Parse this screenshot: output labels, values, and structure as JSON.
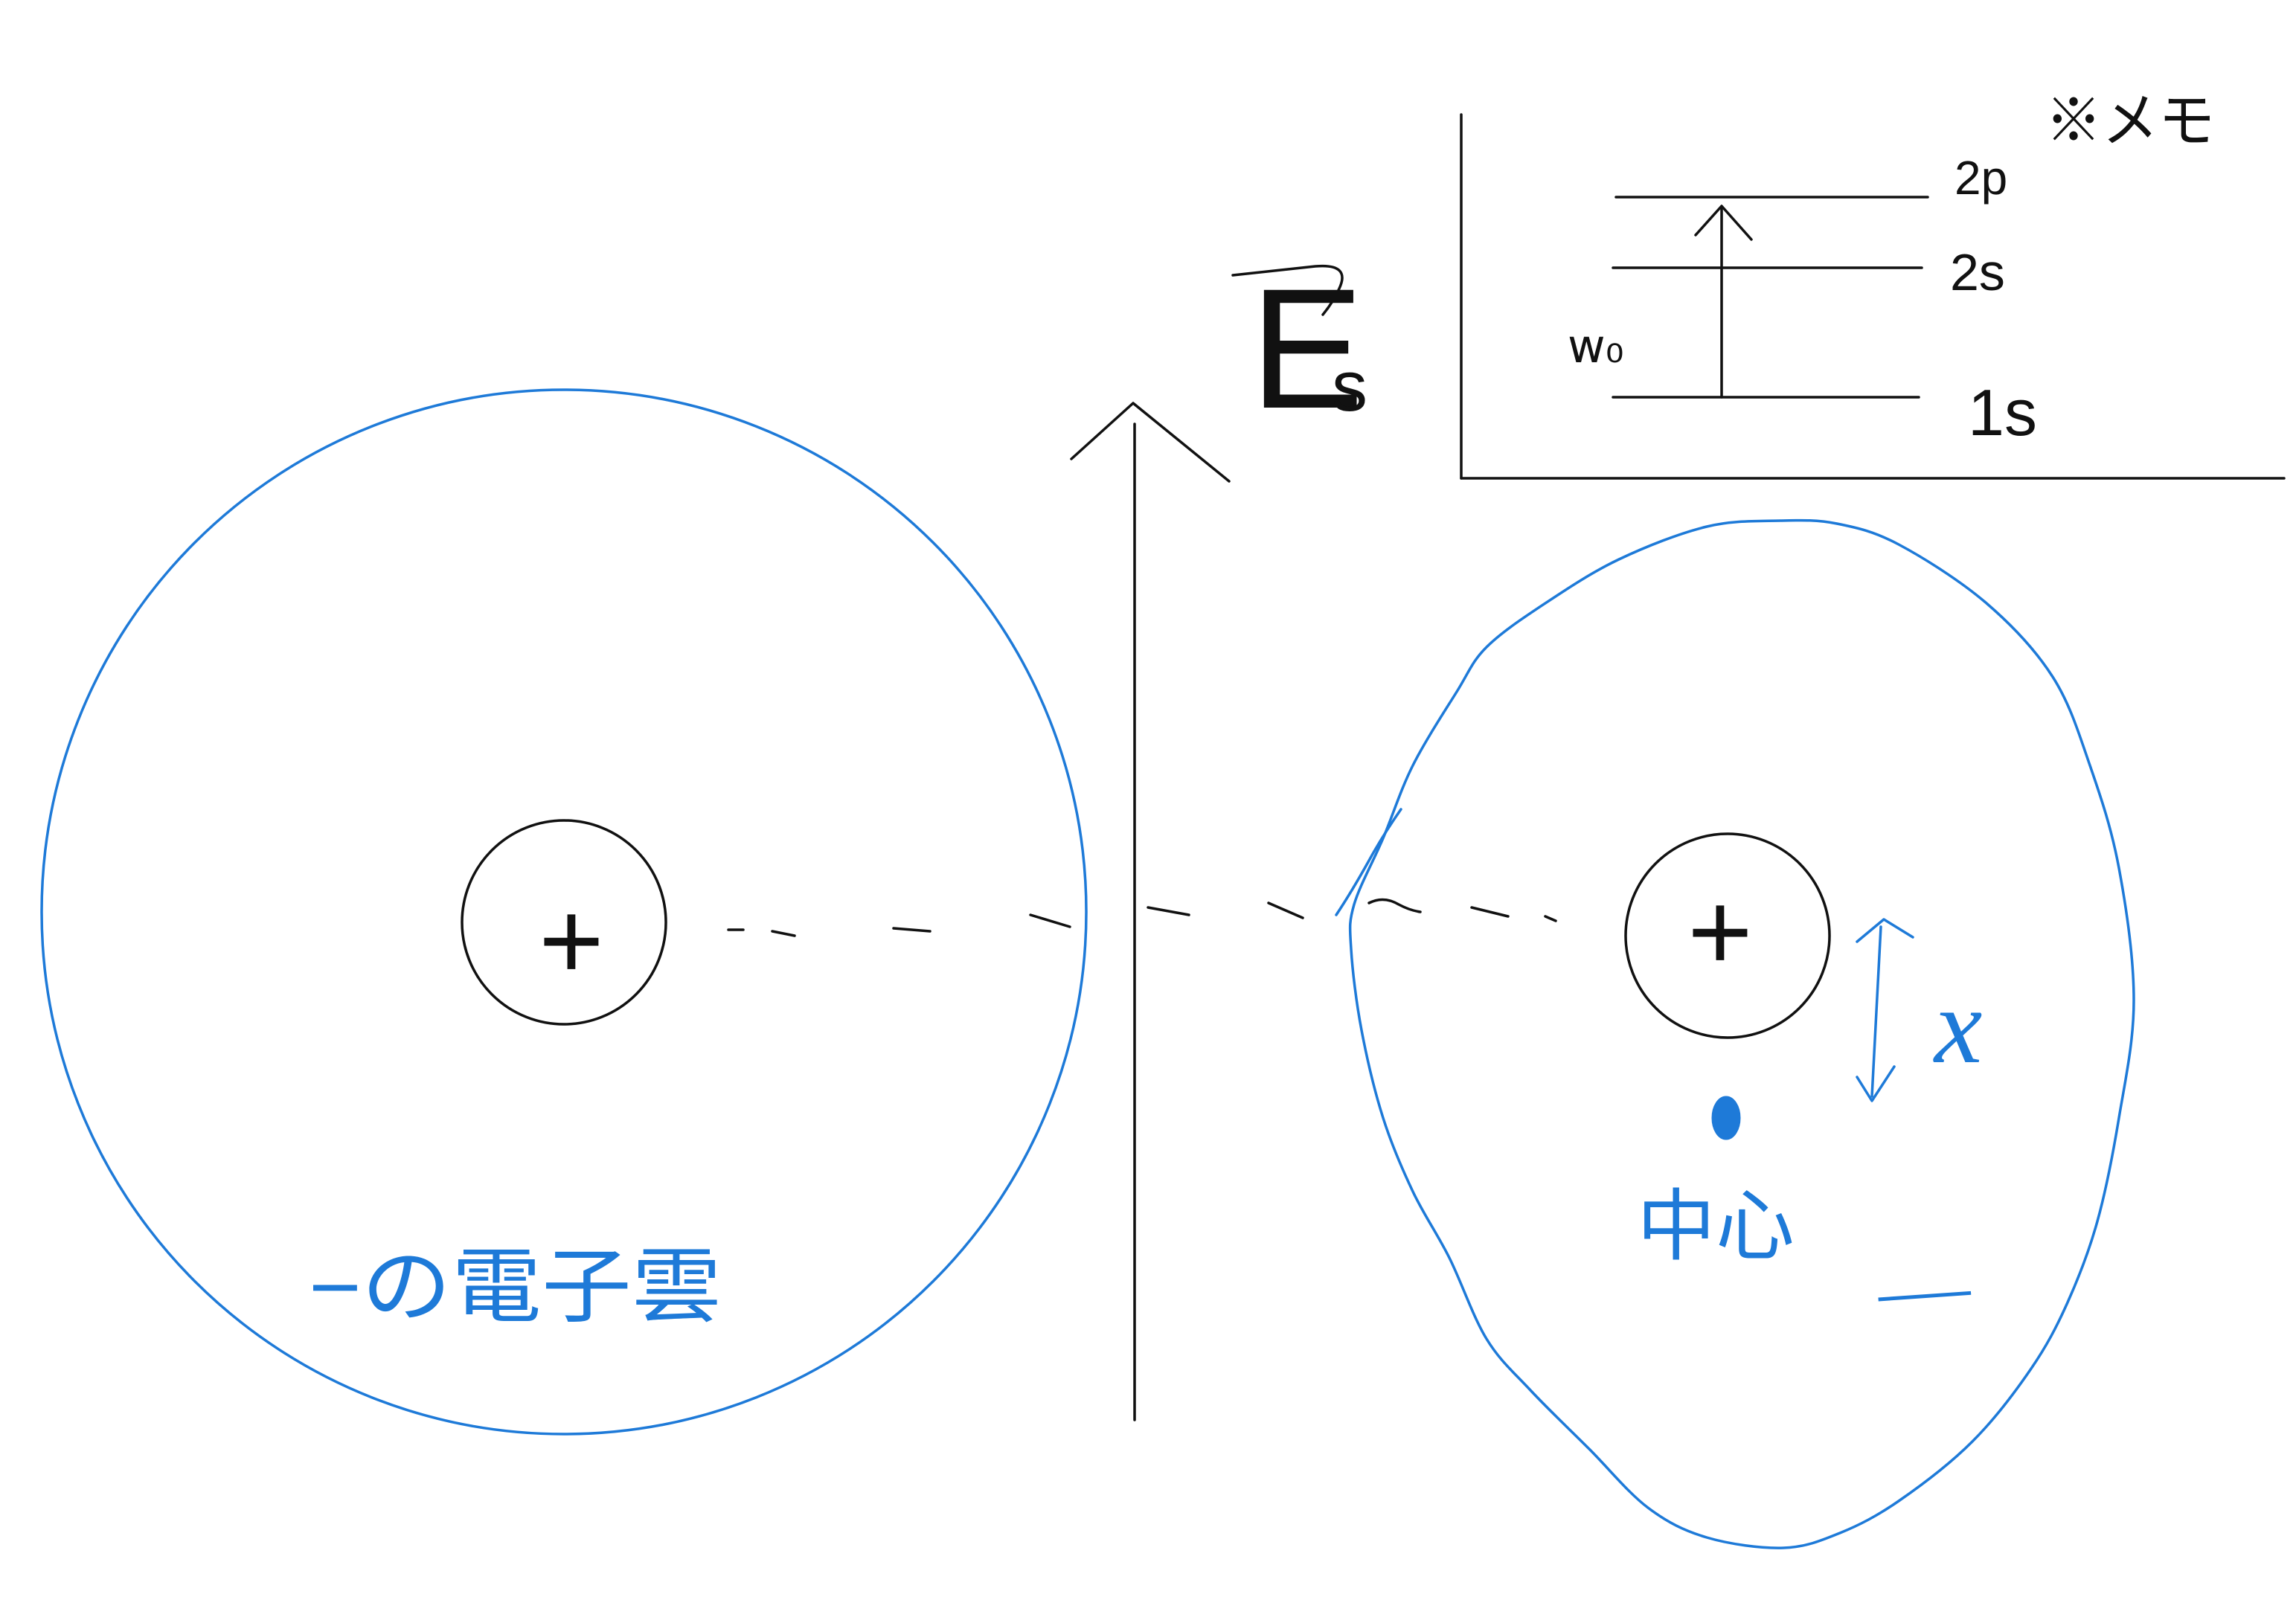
{
  "colors": {
    "ink": "#111111",
    "blue": "#1e7ad8",
    "background": "#ffffff"
  },
  "left_atom": {
    "nucleus_sign": "+",
    "cloud_label": "−の電子雲"
  },
  "field": {
    "label_main": "E",
    "label_sub": "s"
  },
  "right_atom": {
    "nucleus_sign": "+",
    "displacement_label": "x",
    "center_label": "中心",
    "cloud_sign": "−"
  },
  "energy_diagram": {
    "note": "※メモ",
    "levels": [
      {
        "label": "2p"
      },
      {
        "label": "2s"
      },
      {
        "label": "1s"
      }
    ],
    "transition_label": "w₀"
  }
}
